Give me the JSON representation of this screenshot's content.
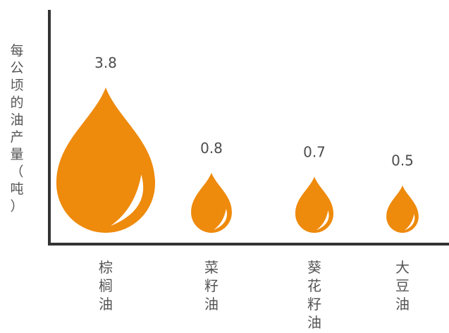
{
  "chart_data": {
    "type": "bar",
    "title": "",
    "xlabel": "",
    "ylabel": "每公顷的油产量（吨）",
    "categories": [
      "棕榈油",
      "菜籽油",
      "葵花籽油",
      "大豆油"
    ],
    "values": [
      3.8,
      0.8,
      0.7,
      0.5
    ],
    "value_labels": [
      "3.8",
      "0.8",
      "0.7",
      "0.5"
    ],
    "ylim": [
      0,
      4
    ],
    "grid": false,
    "legend": "none",
    "mark": "drop",
    "colors": {
      "drop": "#ee8a0c",
      "highlight": "#ffffff",
      "axis": "#333333",
      "text": "#555555"
    }
  }
}
